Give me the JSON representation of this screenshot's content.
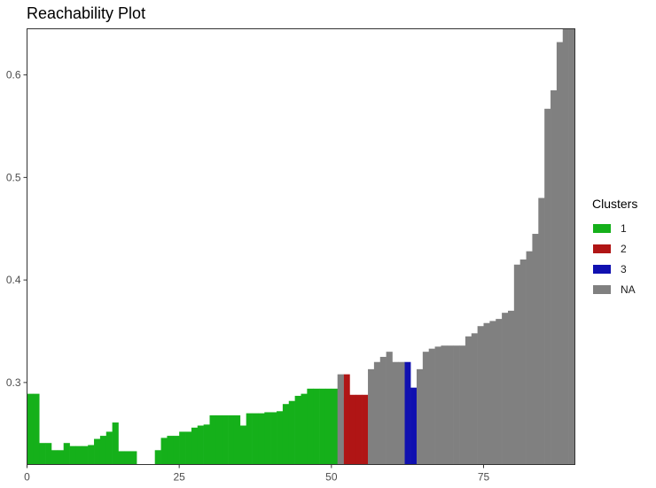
{
  "chart_data": {
    "type": "bar",
    "title": "Reachability Plot",
    "xlabel": "",
    "ylabel": "",
    "xlim": [
      0,
      90
    ],
    "ylim": [
      0.22,
      0.645
    ],
    "x_ticks": [
      "0",
      "25",
      "50",
      "75"
    ],
    "x_tick_values": [
      0,
      25,
      50,
      75
    ],
    "y_ticks": [
      "0.3",
      "0.4",
      "0.5",
      "0.6"
    ],
    "y_tick_values": [
      0.3,
      0.4,
      0.5,
      0.6
    ],
    "grid": false,
    "legend": {
      "title": "Clusters",
      "position": "right",
      "entries": [
        {
          "label": "1",
          "color": "#15b01a"
        },
        {
          "label": "2",
          "color": "#b01515"
        },
        {
          "label": "3",
          "color": "#1010b0"
        },
        {
          "label": "NA",
          "color": "#808080"
        }
      ]
    },
    "series": [
      {
        "name": "1",
        "color": "#15b01a",
        "x": [
          0,
          1,
          2,
          3,
          4,
          5,
          6,
          7,
          8,
          9,
          10,
          11,
          12,
          13,
          14,
          15,
          16,
          17,
          18,
          19,
          20,
          21,
          22,
          23,
          24,
          25,
          26,
          27,
          28,
          29,
          30,
          31,
          32,
          33,
          34,
          35,
          36,
          37,
          38,
          39,
          40,
          41,
          42,
          43,
          44,
          45,
          46,
          47,
          48,
          49,
          50,
          51
        ],
        "values": [
          0.289,
          0.289,
          0.241,
          0.241,
          0.234,
          0.234,
          0.241,
          0.238,
          0.238,
          0.238,
          0.239,
          0.245,
          0.248,
          0.252,
          0.261,
          0.233,
          0.233,
          0.233,
          0.22,
          0.22,
          0.22,
          0.234,
          0.246,
          0.248,
          0.248,
          0.252,
          0.252,
          0.256,
          0.258,
          0.259,
          0.268,
          0.268,
          0.268,
          0.268,
          0.268,
          0.258,
          0.27,
          0.27,
          0.27,
          0.271,
          0.271,
          0.272,
          0.279,
          0.282,
          0.287,
          0.289,
          0.294,
          0.294,
          0.294,
          0.294,
          0.294,
          0.285
        ]
      },
      {
        "name": "2",
        "color": "#b01515",
        "x": [
          52,
          53,
          54,
          55
        ],
        "values": [
          0.308,
          0.288,
          0.288,
          0.288
        ]
      },
      {
        "name": "3",
        "color": "#1010b0",
        "x": [
          62,
          63
        ],
        "values": [
          0.32,
          0.295
        ]
      },
      {
        "name": "NA",
        "color": "#808080",
        "x": [
          51,
          56,
          57,
          58,
          59,
          60,
          61,
          64,
          65,
          66,
          67,
          68,
          69,
          70,
          71,
          72,
          73,
          74,
          75,
          76,
          77,
          78,
          79,
          80,
          81,
          82,
          83,
          84,
          85,
          86,
          87,
          88,
          89
        ],
        "values": [
          0.308,
          0.313,
          0.32,
          0.325,
          0.33,
          0.32,
          0.32,
          0.313,
          0.33,
          0.333,
          0.335,
          0.336,
          0.336,
          0.336,
          0.336,
          0.345,
          0.348,
          0.355,
          0.358,
          0.36,
          0.362,
          0.368,
          0.37,
          0.415,
          0.42,
          0.428,
          0.445,
          0.48,
          0.567,
          0.585,
          0.632,
          0.645,
          0.645
        ]
      }
    ]
  }
}
